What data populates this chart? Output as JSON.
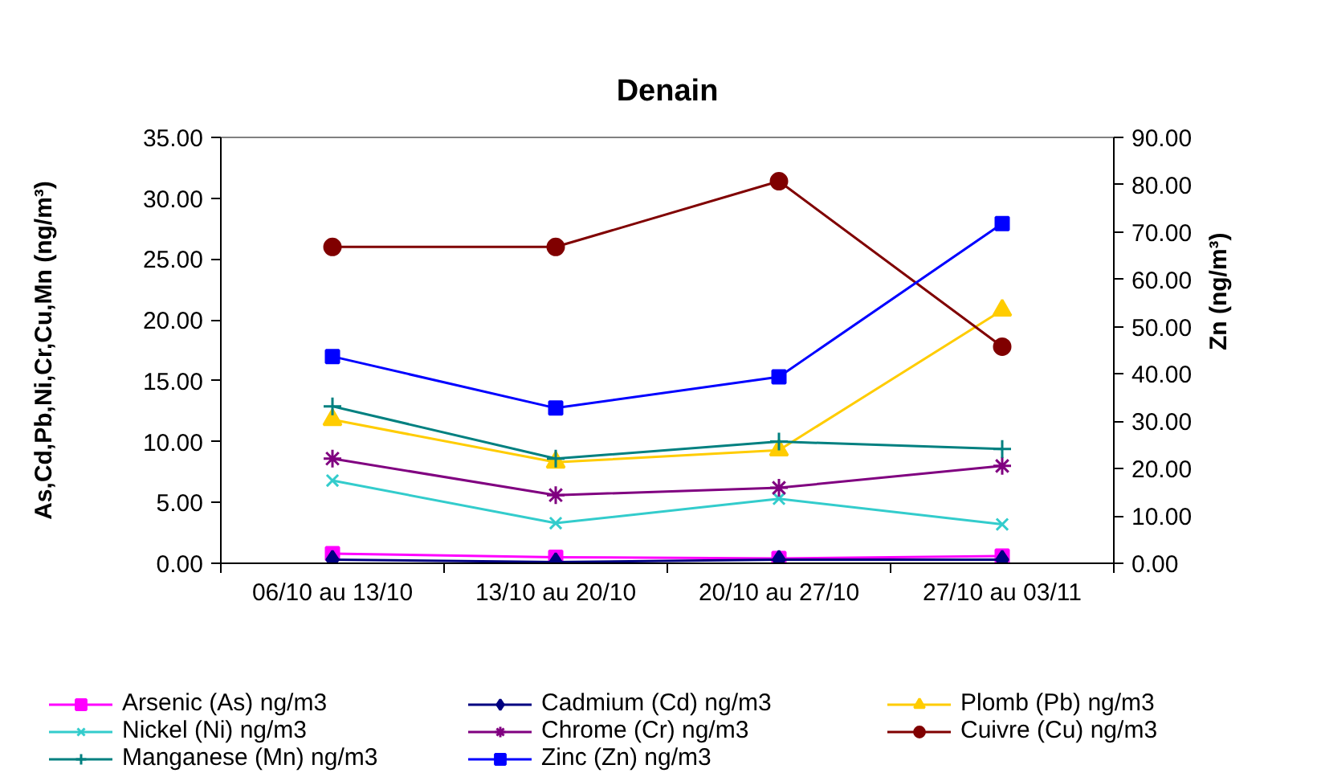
{
  "chart_data": {
    "type": "line",
    "title": "Denain",
    "ylabel": "As,Cd,Pb,Ni,Cr,Cu,Mn (ng/m³)",
    "y2label": "Zn (ng/m³)",
    "categories": [
      "06/10 au 13/10",
      "13/10 au 20/10",
      "20/10 au 27/10",
      "27/10 au 03/11"
    ],
    "ylim": [
      0,
      35
    ],
    "yticks": [
      {
        "value": 0,
        "label": "0.00"
      },
      {
        "value": 5,
        "label": "5.00"
      },
      {
        "value": 10,
        "label": "10.00"
      },
      {
        "value": 15,
        "label": "15.00"
      },
      {
        "value": 20,
        "label": "20.00"
      },
      {
        "value": 25,
        "label": "25.00"
      },
      {
        "value": 30,
        "label": "30.00"
      },
      {
        "value": 35,
        "label": "35.00"
      }
    ],
    "y2lim": [
      0,
      90
    ],
    "y2ticks": [
      {
        "value": 0,
        "label": "0.00"
      },
      {
        "value": 10,
        "label": "10.00"
      },
      {
        "value": 20,
        "label": "20.00"
      },
      {
        "value": 30,
        "label": "30.00"
      },
      {
        "value": 40,
        "label": "40.00"
      },
      {
        "value": 50,
        "label": "50.00"
      },
      {
        "value": 60,
        "label": "60.00"
      },
      {
        "value": 70,
        "label": "70.00"
      },
      {
        "value": 80,
        "label": "80.00"
      },
      {
        "value": 90,
        "label": "90.00"
      }
    ],
    "grid": false,
    "legend": "bottom",
    "series": [
      {
        "name": "Arsenic (As) ng/m3",
        "color": "#ff00ff",
        "marker": "square",
        "values": [
          0.8,
          0.5,
          0.4,
          0.6
        ]
      },
      {
        "name": "Cadmium (Cd) ng/m3",
        "color": "#000080",
        "marker": "diamond",
        "values": [
          0.3,
          0.1,
          0.3,
          0.3
        ]
      },
      {
        "name": "Plomb (Pb) ng/m3",
        "color": "#ffcc00",
        "marker": "triangle",
        "values": [
          11.8,
          8.3,
          9.3,
          20.8
        ]
      },
      {
        "name": "Nickel (Ni) ng/m3",
        "color": "#33cccc",
        "marker": "x",
        "values": [
          6.8,
          3.3,
          5.3,
          3.2
        ]
      },
      {
        "name": "Chrome (Cr) ng/m3",
        "color": "#800080",
        "marker": "cross",
        "values": [
          8.6,
          5.6,
          6.2,
          8.0
        ]
      },
      {
        "name": "Cuivre (Cu) ng/m3",
        "color": "#800000",
        "marker": "circle",
        "values": [
          26.0,
          26.0,
          31.4,
          17.8
        ]
      },
      {
        "name": "Manganese (Mn) ng/m3",
        "color": "#008080",
        "marker": "plus",
        "values": [
          12.9,
          8.6,
          10.0,
          9.4
        ]
      },
      {
        "name": "Zinc (Zn) ng/m3",
        "color": "#0000ff",
        "marker": "square",
        "axis": "y2",
        "values": [
          43.7,
          32.8,
          39.4,
          71.8
        ]
      }
    ]
  }
}
